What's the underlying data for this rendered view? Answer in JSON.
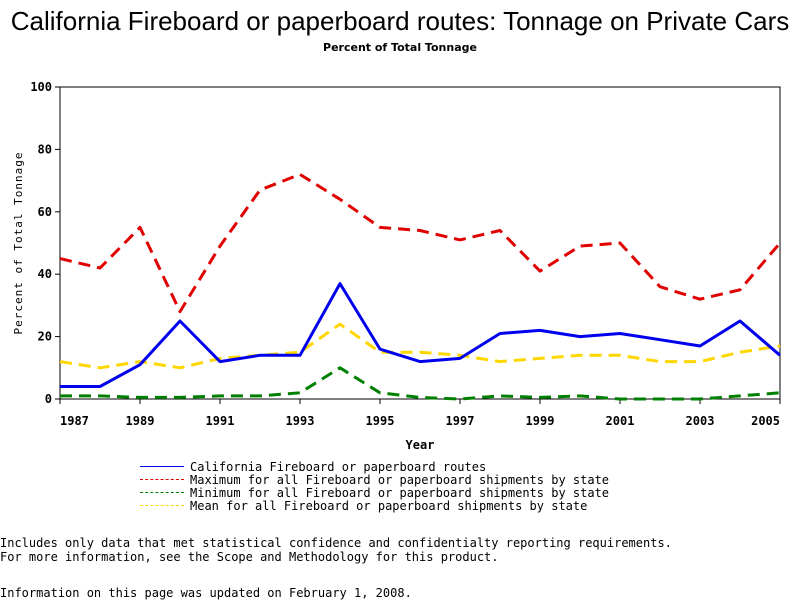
{
  "chart_data": {
    "type": "line",
    "title": "California Fireboard or paperboard routes: Tonnage on Private Cars",
    "subtitle": "Percent of Total Tonnage",
    "xlabel": "Year",
    "ylabel": "Percent of Total Tonnage",
    "xlim": [
      1987,
      2005
    ],
    "ylim": [
      0,
      100
    ],
    "x_ticks": [
      "1987",
      "1989",
      "1991",
      "1993",
      "1995",
      "1997",
      "1999",
      "2001",
      "2003",
      "2005"
    ],
    "y_ticks": [
      "0",
      "20",
      "40",
      "60",
      "80",
      "100"
    ],
    "grid": false,
    "legend_position": "bottom",
    "x": [
      1987,
      1988,
      1989,
      1990,
      1991,
      1992,
      1993,
      1994,
      1995,
      1996,
      1997,
      1998,
      1999,
      2000,
      2001,
      2002,
      2003,
      2004,
      2005
    ],
    "series": [
      {
        "name": "California Fireboard or paperboard routes",
        "color": "#0000ee",
        "style": "solid",
        "values": [
          4,
          4,
          11,
          25,
          12,
          14,
          14,
          37,
          16,
          12,
          13,
          21,
          22,
          20,
          21,
          19,
          17,
          25,
          14
        ]
      },
      {
        "name": "Maximum for all Fireboard or paperboard shipments by state",
        "color": "#e00000",
        "style": "dashed",
        "values": [
          45,
          42,
          55,
          28,
          49,
          67,
          72,
          64,
          55,
          54,
          51,
          54,
          41,
          49,
          50,
          36,
          32,
          35,
          50
        ]
      },
      {
        "name": "Minimum for all Fireboard or paperboard shipments by state",
        "color": "#008000",
        "style": "dashed",
        "values": [
          1,
          1,
          0.5,
          0.5,
          1,
          1,
          2,
          10,
          2,
          0.5,
          0,
          1,
          0.5,
          1,
          0,
          0,
          0,
          1,
          2
        ]
      },
      {
        "name": "Mean for all Fireboard or paperboard shipments by state",
        "color": "#ffd700",
        "style": "dashed",
        "values": [
          12,
          10,
          12,
          10,
          13,
          14,
          15,
          24,
          15,
          15,
          14,
          12,
          13,
          14,
          14,
          12,
          12,
          15,
          17
        ]
      }
    ]
  },
  "footer": {
    "line1": "Includes only data that met statistical confidence and confidentialty reporting requirements.",
    "line2": "For more information, see the Scope and Methodology for this product.",
    "updated": "Information on this page was updated on February 1, 2008."
  }
}
